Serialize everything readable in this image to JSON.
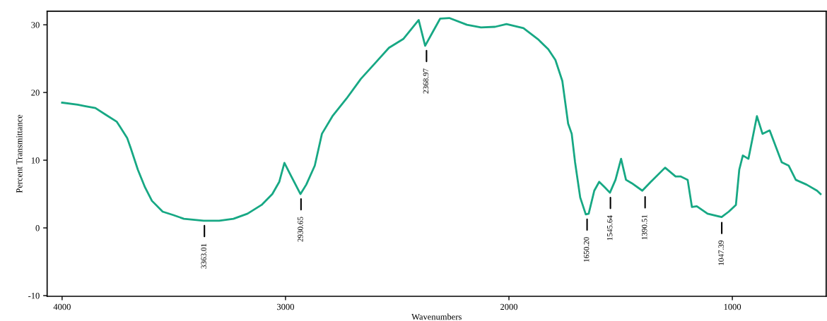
{
  "chart_data": {
    "type": "line",
    "xlabel": "Wavenumbers",
    "ylabel": "Percent Transmittance",
    "xlim": [
      4067,
      580
    ],
    "ylim": [
      -10.1,
      32
    ],
    "xticks": [
      4000,
      3000,
      2000,
      1000
    ],
    "yticks": [
      -10,
      0,
      10,
      20,
      30
    ],
    "grid": false,
    "legend": false,
    "marker": "none",
    "line_style": "solid",
    "series": [
      {
        "color": "#17a884",
        "x": [
          4000,
          3930,
          3899,
          3851,
          3804,
          3756,
          3740,
          3709,
          3693,
          3661,
          3629,
          3598,
          3550,
          3503,
          3455,
          3366,
          3297,
          3233,
          3170,
          3107,
          3059,
          3028,
          3005,
          2974,
          2933,
          2907,
          2869,
          2837,
          2790,
          2727,
          2663,
          2600,
          2537,
          2473,
          2404,
          2375,
          2340,
          2308,
          2267,
          2188,
          2125,
          2062,
          2011,
          1935,
          1871,
          1824,
          1792,
          1761,
          1735,
          1719,
          1704,
          1681,
          1656,
          1643,
          1618,
          1596,
          1571,
          1548,
          1523,
          1498,
          1476,
          1450,
          1403,
          1365,
          1301,
          1254,
          1232,
          1200,
          1181,
          1159,
          1111,
          1048,
          1016,
          984,
          969,
          953,
          928,
          890,
          865,
          833,
          779,
          748,
          716,
          668,
          621,
          605
        ],
        "values": [
          18.5,
          18.2,
          18.0,
          17.7,
          16.7,
          15.7,
          14.9,
          13.3,
          11.8,
          8.6,
          6.0,
          4.0,
          2.4,
          1.9,
          1.35,
          1.05,
          1.05,
          1.35,
          2.1,
          3.4,
          5.0,
          6.8,
          9.6,
          7.6,
          5.0,
          6.4,
          9.2,
          13.9,
          16.5,
          19.1,
          22.0,
          24.3,
          26.6,
          27.9,
          30.7,
          26.9,
          29.0,
          30.9,
          31.0,
          30.0,
          29.6,
          29.7,
          30.1,
          29.5,
          27.9,
          26.4,
          24.8,
          21.7,
          15.4,
          13.9,
          9.7,
          4.5,
          2.0,
          2.1,
          5.5,
          6.8,
          6.0,
          5.2,
          7.1,
          10.2,
          7.1,
          6.6,
          5.5,
          6.8,
          8.9,
          7.6,
          7.6,
          7.1,
          3.1,
          3.2,
          2.1,
          1.6,
          2.4,
          3.4,
          8.6,
          10.7,
          10.2,
          16.5,
          13.9,
          14.4,
          9.7,
          9.2,
          7.1,
          6.4,
          5.5,
          5.0
        ]
      }
    ],
    "annotations": [
      {
        "text": "3363.01",
        "x": 3363.01,
        "y": 1.05
      },
      {
        "text": "2930.65",
        "x": 2930.65,
        "y": 5.0
      },
      {
        "text": "2368.97",
        "x": 2368.97,
        "y": 26.9
      },
      {
        "text": "1650.20",
        "x": 1650.2,
        "y": 2.0
      },
      {
        "text": "1545.64",
        "x": 1545.64,
        "y": 5.2
      },
      {
        "text": "1390.51",
        "x": 1390.51,
        "y": 5.3
      },
      {
        "text": "1047.39",
        "x": 1047.39,
        "y": 1.5
      }
    ]
  }
}
